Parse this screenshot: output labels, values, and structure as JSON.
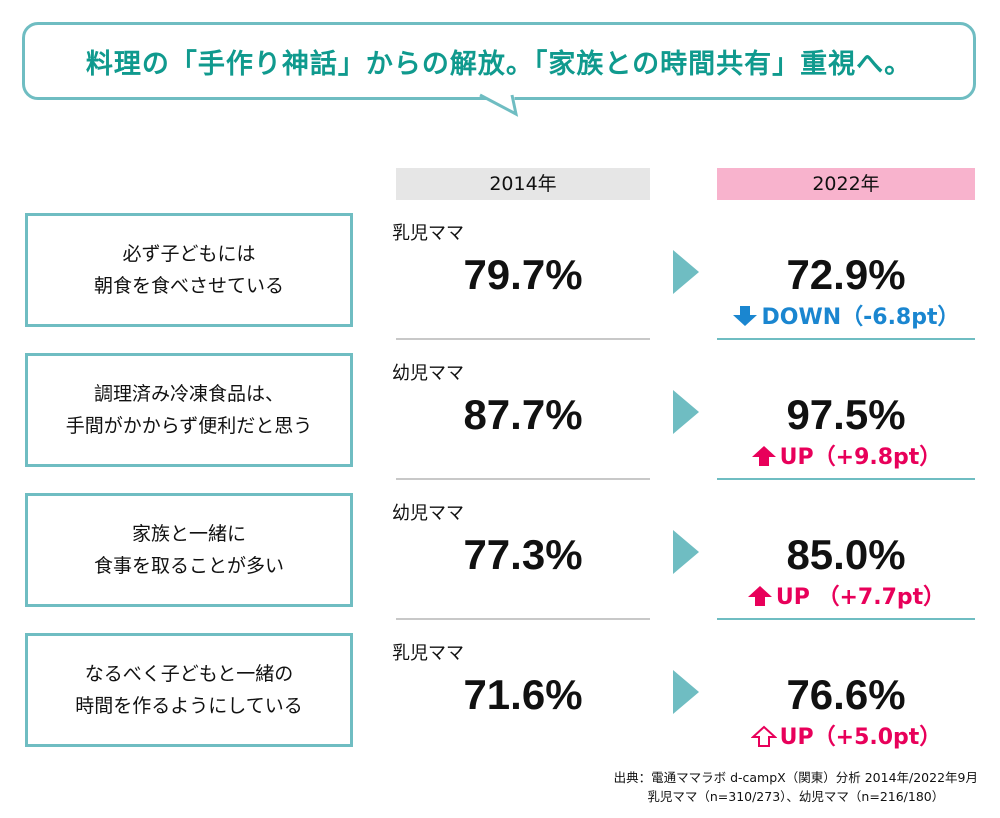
{
  "headline": "料理の「手作り神話」からの解放。「家族との時間共有」重視へ。",
  "colors": {
    "teal": "#6fbdc2",
    "headline": "#109a8e",
    "up": "#e8005a",
    "down": "#1a86d0",
    "header_2014": "#e6e6e6",
    "header_2022": "#f8b3cd"
  },
  "chart_data": {
    "type": "table",
    "columns": [
      "2014年",
      "2022年"
    ],
    "rows": [
      {
        "label": "必ず子どもには\n朝食を食べさせている",
        "group": "乳児ママ",
        "v2014": "79.7%",
        "v2022": "72.9%",
        "direction": "down",
        "arrow_icon": "arrow-down-filled-icon",
        "change_label": "DOWN（-6.8pt）",
        "change": -6.8
      },
      {
        "label": "調理済み冷凍食品は、\n手間がかからず便利だと思う",
        "group": "幼児ママ",
        "v2014": "87.7%",
        "v2022": "97.5%",
        "direction": "up",
        "arrow_icon": "arrow-up-filled-icon",
        "change_label": "UP（+9.8pt）",
        "change": 9.8
      },
      {
        "label": "家族と一緒に\n食事を取ることが多い",
        "group": "幼児ママ",
        "v2014": "77.3%",
        "v2022": "85.0%",
        "direction": "up",
        "arrow_icon": "arrow-up-filled-icon",
        "change_label": "UP （+7.7pt）",
        "change": 7.7
      },
      {
        "label": "なるべく子どもと一緒の\n時間を作るようにしている",
        "group": "乳児ママ",
        "v2014": "71.6%",
        "v2022": "76.6%",
        "direction": "up",
        "arrow_icon": "arrow-up-outline-icon",
        "change_label": "UP（+5.0pt）",
        "change": 5.0
      }
    ]
  },
  "source": {
    "line1": "出典：電通ママラボ d-campX（関東）分析 2014年/2022年9月",
    "line2": "乳児ママ（n=310/273）、幼児ママ（n=216/180）"
  }
}
